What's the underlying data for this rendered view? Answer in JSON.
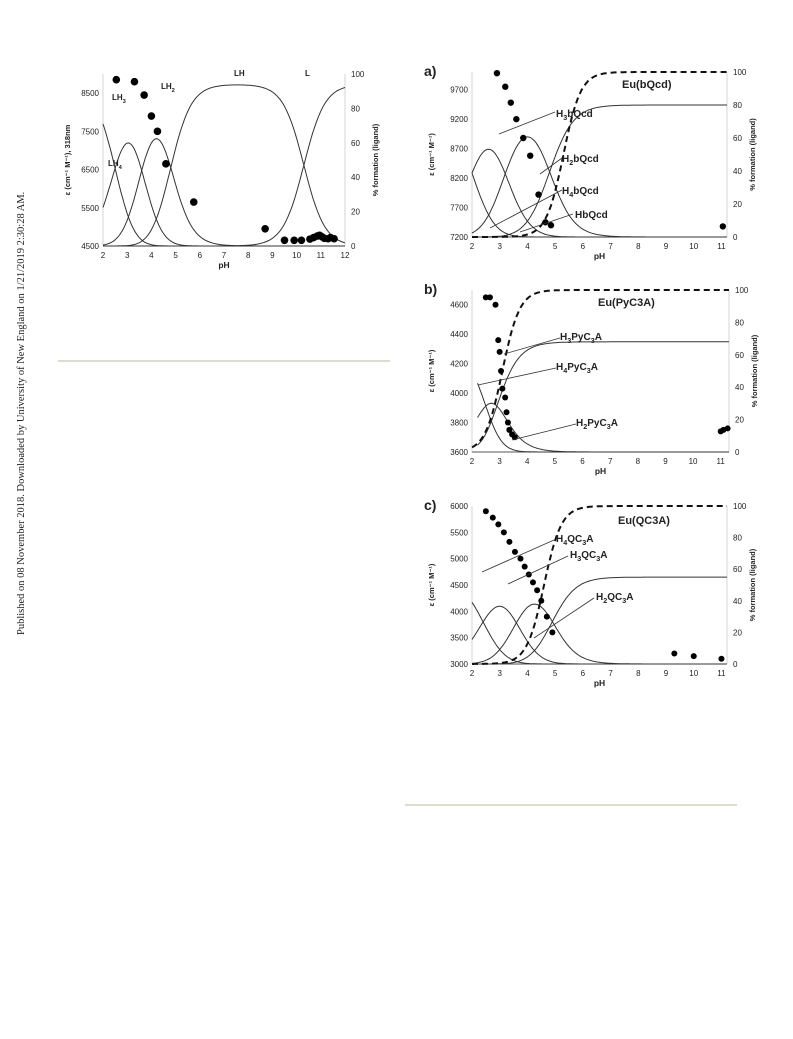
{
  "margin_note": "Published on 08 November 2018. Downloaded by University of New England on 1/21/2019 2:30:28 AM.",
  "colors": {
    "curve": "#333333",
    "points": "#000000",
    "rule": "#dcdcd0"
  },
  "chart_data": [
    {
      "id": "left",
      "type": "line",
      "panel_label": "",
      "title": "",
      "xlabel": "pH",
      "ylabel": "ε (cm⁻¹ M⁻¹), 318nm",
      "y2label": "% formation (ligand)",
      "xlim": [
        2,
        12
      ],
      "ylim": [
        4500,
        9000
      ],
      "y2lim": [
        0,
        100
      ],
      "xticks": [
        "2",
        "3",
        "4",
        "5",
        "6",
        "7",
        "8",
        "9",
        "10",
        "11",
        "12"
      ],
      "yticks": [
        "4500",
        "5500",
        "6500",
        "7500",
        "8500"
      ],
      "y2ticks": [
        "0",
        "20",
        "40",
        "60",
        "80",
        "100"
      ],
      "species_labels": [
        "LH3",
        "LH2",
        "LH",
        "L",
        "LH4"
      ],
      "species_pKa": [
        2.5,
        3.6,
        4.8,
        10.3
      ],
      "series": [
        {
          "name": "ε",
          "style": "points",
          "x": [
            2.55,
            3.3,
            3.7,
            4.0,
            4.25,
            4.6,
            5.75,
            8.7,
            9.5,
            9.9,
            10.2,
            10.55,
            10.7,
            10.85,
            10.95,
            11.05,
            11.15,
            11.3,
            11.4,
            11.55
          ],
          "y": [
            8850,
            8800,
            8450,
            7900,
            7500,
            6650,
            5650,
            4950,
            4650,
            4650,
            4650,
            4680,
            4720,
            4760,
            4780,
            4740,
            4700,
            4690,
            4720,
            4690
          ]
        }
      ]
    },
    {
      "id": "a",
      "type": "line",
      "panel_label": "a)",
      "title": "Eu(bQcd)",
      "xlabel": "pH",
      "ylabel": "ε (cm⁻¹ M⁻¹)",
      "y2label": "% formation (ligand)",
      "xlim": [
        2,
        11.2
      ],
      "ylim": [
        7200,
        10000
      ],
      "y2lim": [
        0,
        100
      ],
      "xticks": [
        "2",
        "3",
        "4",
        "5",
        "6",
        "7",
        "8",
        "9",
        "10",
        "11"
      ],
      "yticks": [
        "7200",
        "7700",
        "8200",
        "8700",
        "9200",
        "9700"
      ],
      "y2ticks": [
        "0",
        "20",
        "40",
        "60",
        "80",
        "100"
      ],
      "species_labels": [
        "H3bQcd",
        "H2bQcd",
        "H4bQcd",
        "HbQcd"
      ],
      "species_pKa": [
        2.0,
        3.2,
        4.8
      ],
      "complex_mid": 5.3,
      "series": [
        {
          "name": "ε",
          "style": "points",
          "x": [
            2.9,
            3.2,
            3.4,
            3.6,
            3.85,
            4.1,
            4.4,
            4.65,
            4.85,
            11.05
          ],
          "y": [
            9980,
            9750,
            9480,
            9200,
            8880,
            8580,
            7920,
            7450,
            7400,
            7380
          ]
        }
      ]
    },
    {
      "id": "b",
      "type": "line",
      "panel_label": "b)",
      "title": "Eu(PyC3A)",
      "xlabel": "pH",
      "ylabel": "ε (cm⁻¹ M⁻¹)",
      "y2label": "% formation (ligand)",
      "xlim": [
        2,
        11.3
      ],
      "ylim": [
        3600,
        4700
      ],
      "y2lim": [
        0,
        100
      ],
      "xticks": [
        "2",
        "3",
        "4",
        "5",
        "6",
        "7",
        "8",
        "9",
        "10",
        "11"
      ],
      "yticks": [
        "3600",
        "3800",
        "4000",
        "4200",
        "4400",
        "4600"
      ],
      "y2ticks": [
        "0",
        "20",
        "40",
        "60",
        "80",
        "100"
      ],
      "species_labels": [
        "H3PyC3A",
        "H4PyC3A",
        "H2PyC3A"
      ],
      "species_pKa": [
        2.5,
        2.9
      ],
      "complex_mid": 3.1,
      "series": [
        {
          "name": "ε",
          "style": "points",
          "x": [
            2.5,
            2.65,
            2.85,
            2.95,
            3.0,
            3.05,
            3.1,
            3.2,
            3.25,
            3.3,
            3.35,
            3.45,
            3.55,
            11.0,
            11.1,
            11.25
          ],
          "y": [
            4650,
            4650,
            4600,
            4360,
            4280,
            4150,
            4030,
            3970,
            3870,
            3800,
            3750,
            3720,
            3700,
            3740,
            3750,
            3760
          ]
        }
      ]
    },
    {
      "id": "c",
      "type": "line",
      "panel_label": "c)",
      "title": "Eu(QC3A)",
      "xlabel": "pH",
      "ylabel": "ε (cm⁻¹ M⁻¹)",
      "y2label": "% formation (ligand)",
      "xlim": [
        2,
        11.2
      ],
      "ylim": [
        3000,
        6000
      ],
      "y2lim": [
        0,
        100
      ],
      "xticks": [
        "2",
        "3",
        "4",
        "5",
        "6",
        "7",
        "8",
        "9",
        "10",
        "11"
      ],
      "yticks": [
        "3000",
        "3500",
        "4000",
        "4500",
        "5000",
        "5500",
        "6000"
      ],
      "y2ticks": [
        "0",
        "20",
        "40",
        "60",
        "80",
        "100"
      ],
      "species_labels": [
        "H4QC3A",
        "H3QC3A",
        "H2QC3A"
      ],
      "species_pKa": [
        2.4,
        3.6,
        4.9
      ],
      "complex_mid": 4.6,
      "series": [
        {
          "name": "ε",
          "style": "points",
          "x": [
            2.5,
            2.75,
            2.95,
            3.15,
            3.35,
            3.55,
            3.75,
            3.9,
            4.05,
            4.2,
            4.35,
            4.5,
            4.7,
            4.9,
            9.3,
            10.0,
            11.0
          ],
          "y": [
            5900,
            5780,
            5650,
            5500,
            5320,
            5130,
            5000,
            4850,
            4700,
            4550,
            4400,
            4200,
            3900,
            3600,
            3200,
            3150,
            3100
          ]
        }
      ]
    }
  ]
}
